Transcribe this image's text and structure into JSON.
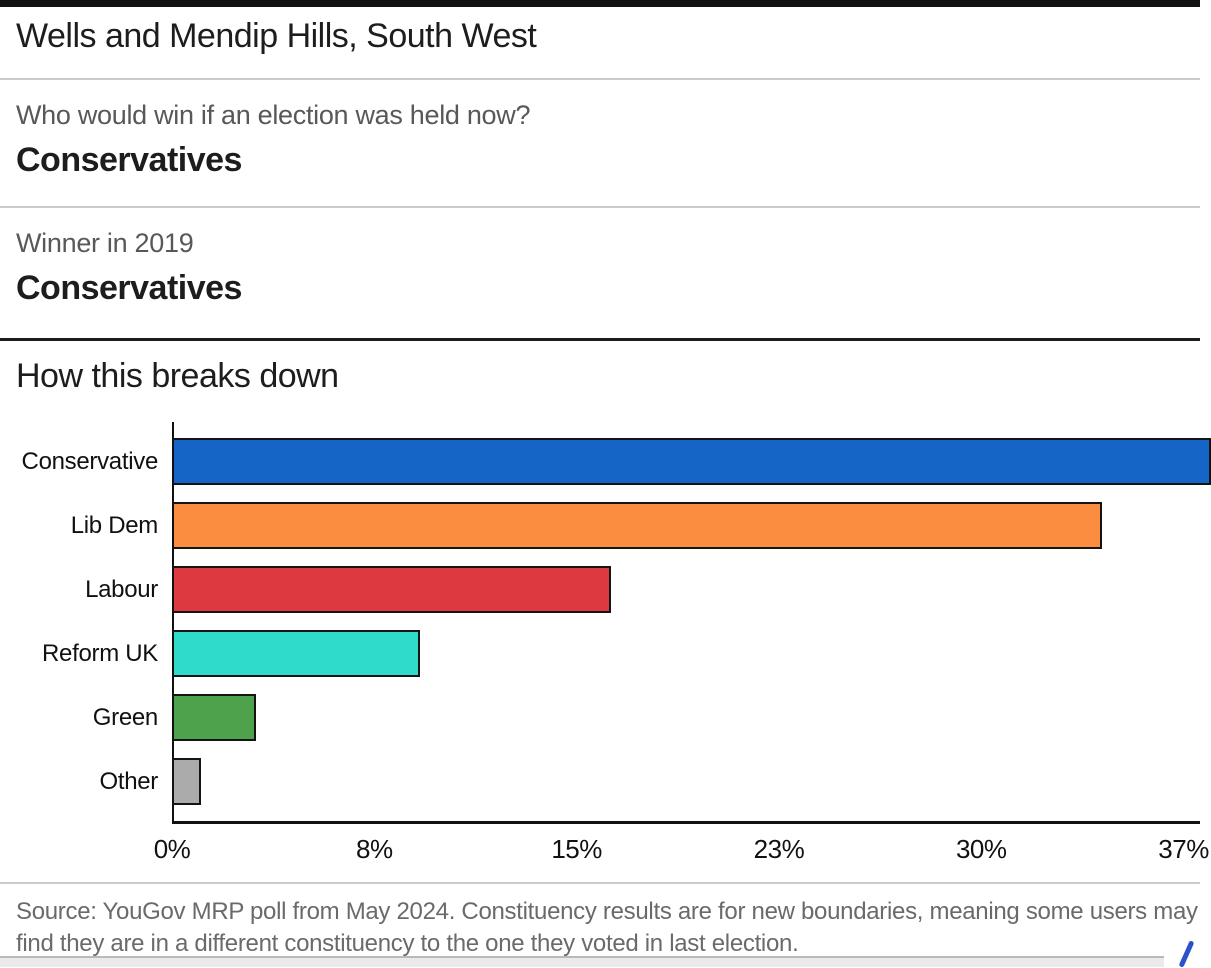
{
  "page": {
    "title": "Wells and Mendip Hills, South West",
    "question": {
      "label": "Who would win if an election was held now?",
      "answer": "Conservatives"
    },
    "winner_2019": {
      "label": "Winner in 2019",
      "answer": "Conservatives"
    },
    "breakdown_heading": "How this breaks down",
    "source_line1": "Source: YouGov MRP poll from May 2024. Constituency results are for new boundaries, meaning some users may",
    "source_line2": "find they are in a different constituency to the one they voted in last election."
  },
  "chart_data": {
    "type": "bar",
    "orientation": "horizontal",
    "categories": [
      "Conservative",
      "Lib Dem",
      "Labour",
      "Reform UK",
      "Green",
      "Other"
    ],
    "values": [
      38,
      34,
      16,
      9,
      3,
      1
    ],
    "unit": "%",
    "colors": [
      "#1465c6",
      "#fb8d41",
      "#dc3a40",
      "#2fdccb",
      "#4ea24b",
      "#ababab"
    ],
    "bar_border_color": "#141414",
    "x_ticks": [
      "0%",
      "8%",
      "15%",
      "23%",
      "30%",
      "37%"
    ],
    "xlim": [
      0,
      37
    ],
    "grid": false,
    "legend": false
  },
  "annotation": {
    "pen_color": "#2a52cc"
  }
}
